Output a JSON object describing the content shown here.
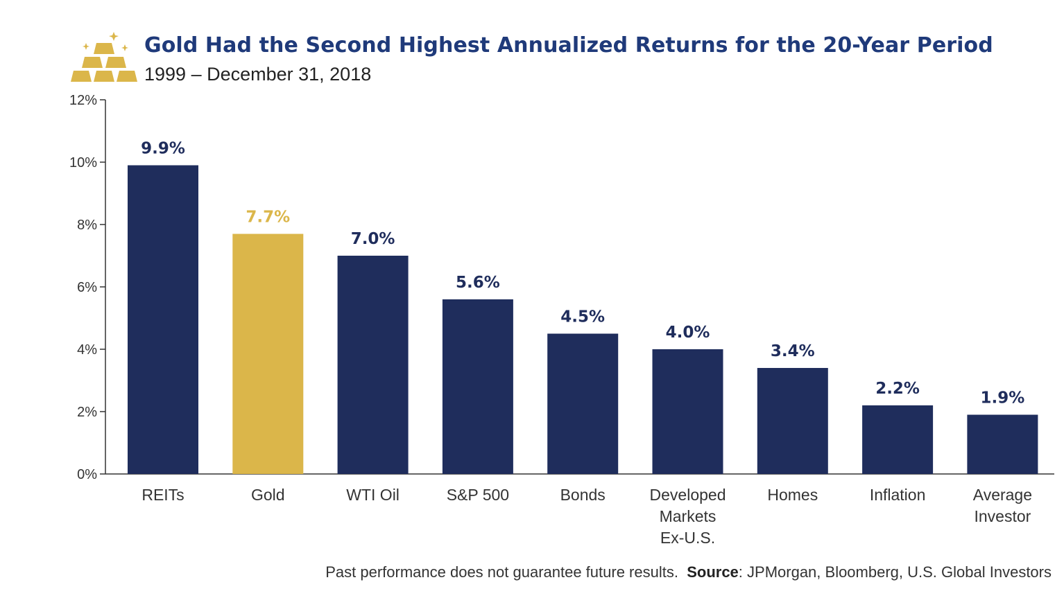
{
  "header": {
    "title": "Gold Had the Second Highest Annualized Returns for the 20-Year Period",
    "subtitle": "1999 – December 31, 2018"
  },
  "footer": {
    "disclaimer": "Past performance does not guarantee future results.",
    "source_label": "Source",
    "source_text": ": JPMorgan, Bloomberg, U.S. Global Investors"
  },
  "colors": {
    "navy": "#1f2d5c",
    "gold": "#dbb64a",
    "title": "#1f3a7a"
  },
  "logo_icon": "gold-bars-icon",
  "chart_data": {
    "type": "bar",
    "categories": [
      [
        "REITs"
      ],
      [
        "Gold"
      ],
      [
        "WTI Oil"
      ],
      [
        "S&P 500"
      ],
      [
        "Bonds"
      ],
      [
        "Developed",
        "Markets",
        "Ex-U.S."
      ],
      [
        "Homes"
      ],
      [
        "Inflation"
      ],
      [
        "Average",
        "Investor"
      ]
    ],
    "values": [
      9.9,
      7.7,
      7.0,
      5.6,
      4.5,
      4.0,
      3.4,
      2.2,
      1.9
    ],
    "value_labels": [
      "9.9%",
      "7.7%",
      "7.0%",
      "5.6%",
      "4.5%",
      "4.0%",
      "3.4%",
      "2.2%",
      "1.9%"
    ],
    "highlight_index": 1,
    "ylim": [
      0,
      12
    ],
    "yticks": [
      0,
      2,
      4,
      6,
      8,
      10,
      12
    ],
    "ytick_labels": [
      "0%",
      "2%",
      "4%",
      "6%",
      "8%",
      "10%",
      "12%"
    ],
    "grid": false,
    "xlabel": "",
    "ylabel": ""
  }
}
